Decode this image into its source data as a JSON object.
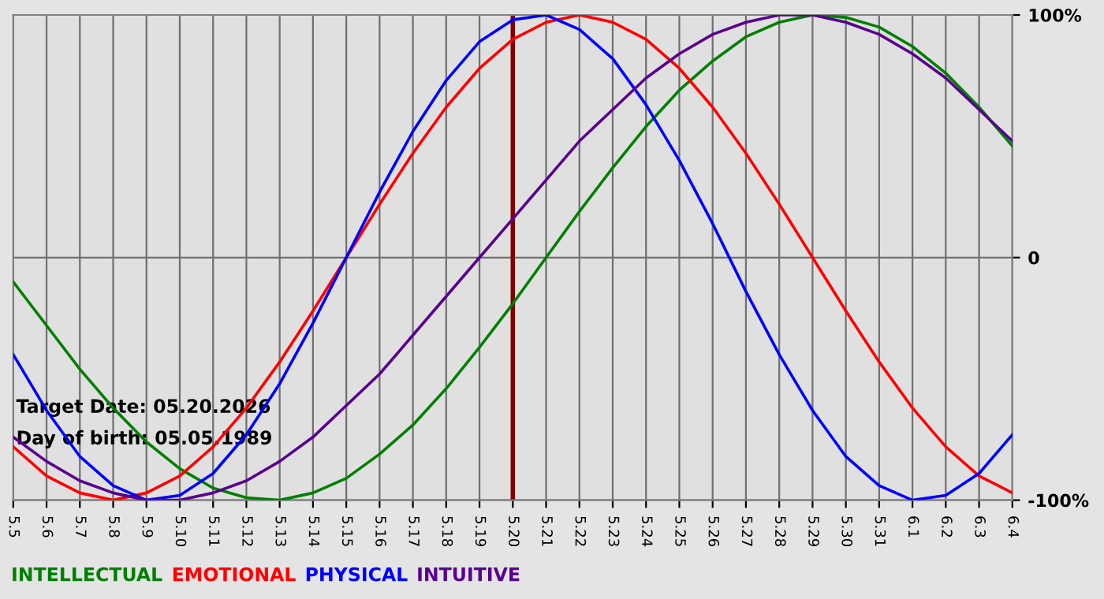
{
  "chart_data": {
    "type": "line",
    "categories": [
      "5.5",
      "5.6",
      "5.7",
      "5.8",
      "5.9",
      "5.10",
      "5.11",
      "5.12",
      "5.13",
      "5.14",
      "5.15",
      "5.16",
      "5.17",
      "5.18",
      "5.19",
      "5.20",
      "5.21",
      "5.22",
      "5.23",
      "5.24",
      "5.25",
      "5.26",
      "5.27",
      "5.28",
      "5.29",
      "5.30",
      "5.31",
      "6.1",
      "6.2",
      "6.3",
      "6.4"
    ],
    "series": [
      {
        "name": "INTELLECTUAL",
        "color": "#008000",
        "values": [
          -10,
          -28,
          -46,
          -62,
          -76,
          -87,
          -95,
          -99,
          -100,
          -97,
          -91,
          -81,
          -69,
          -54,
          -37,
          -19,
          0,
          19,
          37,
          54,
          69,
          81,
          91,
          97,
          100,
          99,
          95,
          87,
          76,
          62,
          46
        ]
      },
      {
        "name": "EMOTIONAL",
        "color": "#ff0000",
        "values": [
          -78,
          -90,
          -97,
          -100,
          -97,
          -90,
          -78,
          -62,
          -43,
          -22,
          0,
          22,
          43,
          62,
          78,
          90,
          97,
          100,
          97,
          90,
          78,
          62,
          43,
          22,
          0,
          -22,
          -43,
          -62,
          -78,
          -90,
          -97
        ]
      },
      {
        "name": "PHYSICAL",
        "color": "#0000ff",
        "values": [
          -40,
          -63,
          -82,
          -94,
          -100,
          -98,
          -89,
          -73,
          -52,
          -27,
          0,
          27,
          52,
          73,
          89,
          98,
          100,
          94,
          82,
          63,
          40,
          14,
          -14,
          -40,
          -63,
          -82,
          -94,
          -100,
          -98,
          -89,
          -73
        ]
      },
      {
        "name": "INTUITIVE",
        "color": "#5a0090",
        "values": [
          -74,
          -84,
          -92,
          -97,
          -100,
          -100,
          -97,
          -92,
          -84,
          -74,
          -61,
          -48,
          -32,
          -16,
          0,
          16,
          32,
          48,
          61,
          74,
          84,
          92,
          97,
          100,
          100,
          97,
          92,
          84,
          74,
          61,
          48
        ]
      }
    ],
    "ylim": [
      -100,
      100
    ],
    "yticks": [
      {
        "value": -100,
        "label": "-100%"
      },
      0,
      {
        "value": 100,
        "label": "100%"
      }
    ],
    "ref_lines": [
      {
        "axis": "x",
        "value": "5.20",
        "color": "#800000"
      }
    ],
    "annotations": [
      "Target Date: 05.20.2026",
      "Day of birth: 05.05.1989"
    ],
    "grid": true,
    "legend": "bottom",
    "marker": "none",
    "line_style": "solid"
  }
}
